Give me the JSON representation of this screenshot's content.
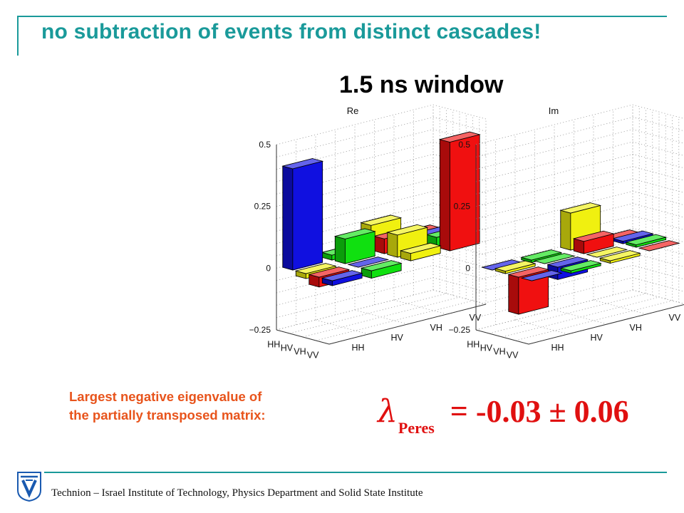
{
  "header": {
    "title": "no subtraction of  events from distinct cascades!",
    "subtitle": "1.5 ns window"
  },
  "colors": {
    "teal": "#1a9a9a",
    "orange": "#e8541c",
    "red": "#e01010",
    "bar_colors": [
      "#1010e0",
      "#10e010",
      "#f0f010",
      "#f01010"
    ]
  },
  "chart_data": [
    {
      "type": "bar3d",
      "title": "Re",
      "zlim": [
        -0.25,
        0.5
      ],
      "z_ticks": [
        "0.5",
        "0.25",
        "0",
        "−0.25"
      ],
      "row_labels": [
        "HH",
        "HV",
        "VH",
        "VV"
      ],
      "col_labels": [
        "HH",
        "HV",
        "VH",
        "VV"
      ],
      "values": [
        [
          0.41,
          0.02,
          0.1,
          0.02
        ],
        [
          -0.02,
          0.1,
          0.06,
          0.03
        ],
        [
          -0.04,
          0.0,
          0.09,
          0.04
        ],
        [
          -0.02,
          -0.03,
          0.03,
          0.44
        ]
      ]
    },
    {
      "type": "bar3d",
      "title": "Im",
      "zlim": [
        -0.25,
        0.5
      ],
      "z_ticks": [
        "0.5",
        "0.25",
        "0",
        "−0.25"
      ],
      "row_labels": [
        "HH",
        "HV",
        "VH",
        "VV"
      ],
      "col_labels": [
        "HH",
        "HV",
        "VH",
        "VV"
      ],
      "values": [
        [
          0.0,
          -0.01,
          0.15,
          0.0
        ],
        [
          0.01,
          0.0,
          0.05,
          0.01
        ],
        [
          -0.15,
          -0.05,
          0.0,
          0.01
        ],
        [
          0.0,
          -0.01,
          -0.01,
          0.0
        ]
      ]
    }
  ],
  "eigenvalue": {
    "caption_line1": "Largest negative eigenvalue of",
    "caption_line2": "the partially transposed matrix:",
    "symbol": "λ",
    "subscript": "Peres",
    "value_text": "= -0.03 ± 0.06"
  },
  "footer": {
    "text": "Technion – Israel Institute of Technology, Physics Department and Solid State Institute",
    "logo_icon": "technion-logo-icon"
  }
}
